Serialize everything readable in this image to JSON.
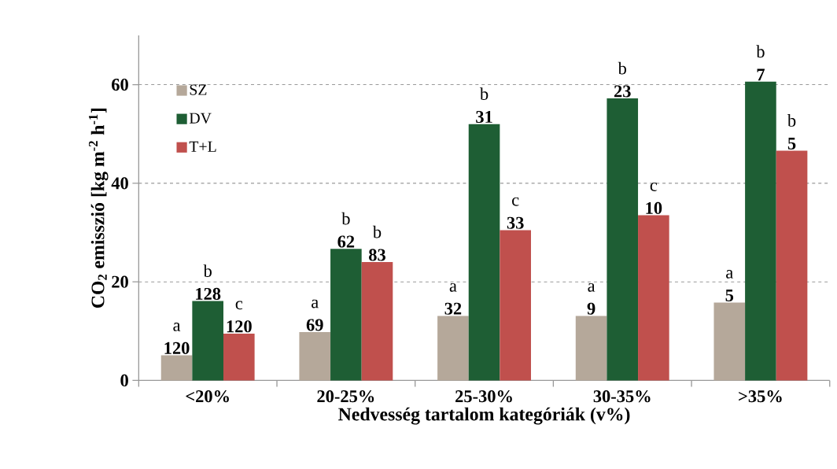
{
  "chart_data": {
    "type": "bar",
    "xlabel": "Nedvesség tartalom kategóriák (v%)",
    "ylabel": "CO$_{2}$ emisszió [kg m$^{-2}$ h$^{-1}$]",
    "categories": [
      "<20%",
      "20-25%",
      "25-30%",
      "30-35%",
      ">35%"
    ],
    "series": [
      {
        "name": "SZ",
        "color": "#b5a89a",
        "values": [
          5.1,
          9.8,
          13.1,
          13.1,
          15.8
        ]
      },
      {
        "name": "DV",
        "color": "#1e5e34",
        "values": [
          16.1,
          26.7,
          52.0,
          57.2,
          60.6
        ]
      },
      {
        "name": "T+L",
        "color": "#c0504d",
        "values": [
          9.5,
          24.0,
          30.5,
          33.5,
          46.6
        ]
      }
    ],
    "ylim": [
      0,
      70
    ],
    "yticks": [
      0,
      20,
      40,
      60
    ],
    "grid": "y",
    "legend": "top left",
    "annotations": [
      "a",
      "120",
      "b",
      "128",
      "c",
      "120",
      "a",
      "69",
      "b",
      "62",
      "b",
      "83",
      "a",
      "32",
      "b",
      "31",
      "c",
      "33",
      "a",
      "9",
      "b",
      "23",
      "c",
      "10",
      "a",
      "5",
      "b",
      "7",
      "b",
      "5"
    ]
  }
}
